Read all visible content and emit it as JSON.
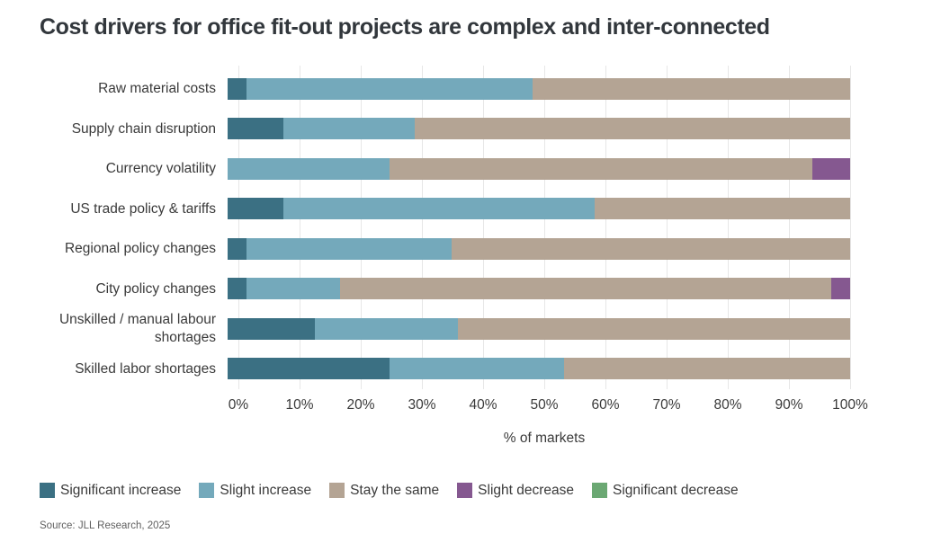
{
  "title": "Cost drivers for office fit-out projects are complex and inter-connected",
  "source": "Source: JLL Research, 2025",
  "chart_data": {
    "type": "bar",
    "orientation": "horizontal",
    "stacked": true,
    "title": "Cost drivers for office fit-out projects are complex and inter-connected",
    "xlabel": "% of markets",
    "xlim": [
      0,
      100
    ],
    "grid": "vertical",
    "legend_position": "bottom",
    "x_ticks": [
      "0%",
      "10%",
      "20%",
      "30%",
      "40%",
      "50%",
      "60%",
      "70%",
      "80%",
      "90%",
      "100%"
    ],
    "categories": [
      "Raw material costs",
      "Supply chain disruption",
      "Currency volatility",
      "US trade policy & tariffs",
      "Regional policy changes",
      "City policy changes",
      "Unskilled / manual labour shortages",
      "Skilled labor shortages"
    ],
    "series": [
      {
        "name": "Significant increase",
        "color": "#3b7083",
        "values": [
          3,
          9,
          0,
          9,
          3,
          3,
          14,
          26
        ]
      },
      {
        "name": "Slight increase",
        "color": "#74a9bb",
        "values": [
          46,
          21,
          26,
          50,
          33,
          15,
          23,
          28
        ]
      },
      {
        "name": "Stay the same",
        "color": "#b4a494",
        "values": [
          51,
          70,
          68,
          41,
          64,
          79,
          63,
          46
        ]
      },
      {
        "name": "Slight decrease",
        "color": "#855890",
        "values": [
          0,
          0,
          6,
          0,
          0,
          3,
          0,
          0
        ]
      },
      {
        "name": "Significant decrease",
        "color": "#6ba873",
        "values": [
          0,
          0,
          0,
          0,
          0,
          0,
          0,
          0
        ]
      }
    ],
    "colors": {
      "gridline": "#e7e7e7",
      "background": "#ffffff"
    }
  }
}
